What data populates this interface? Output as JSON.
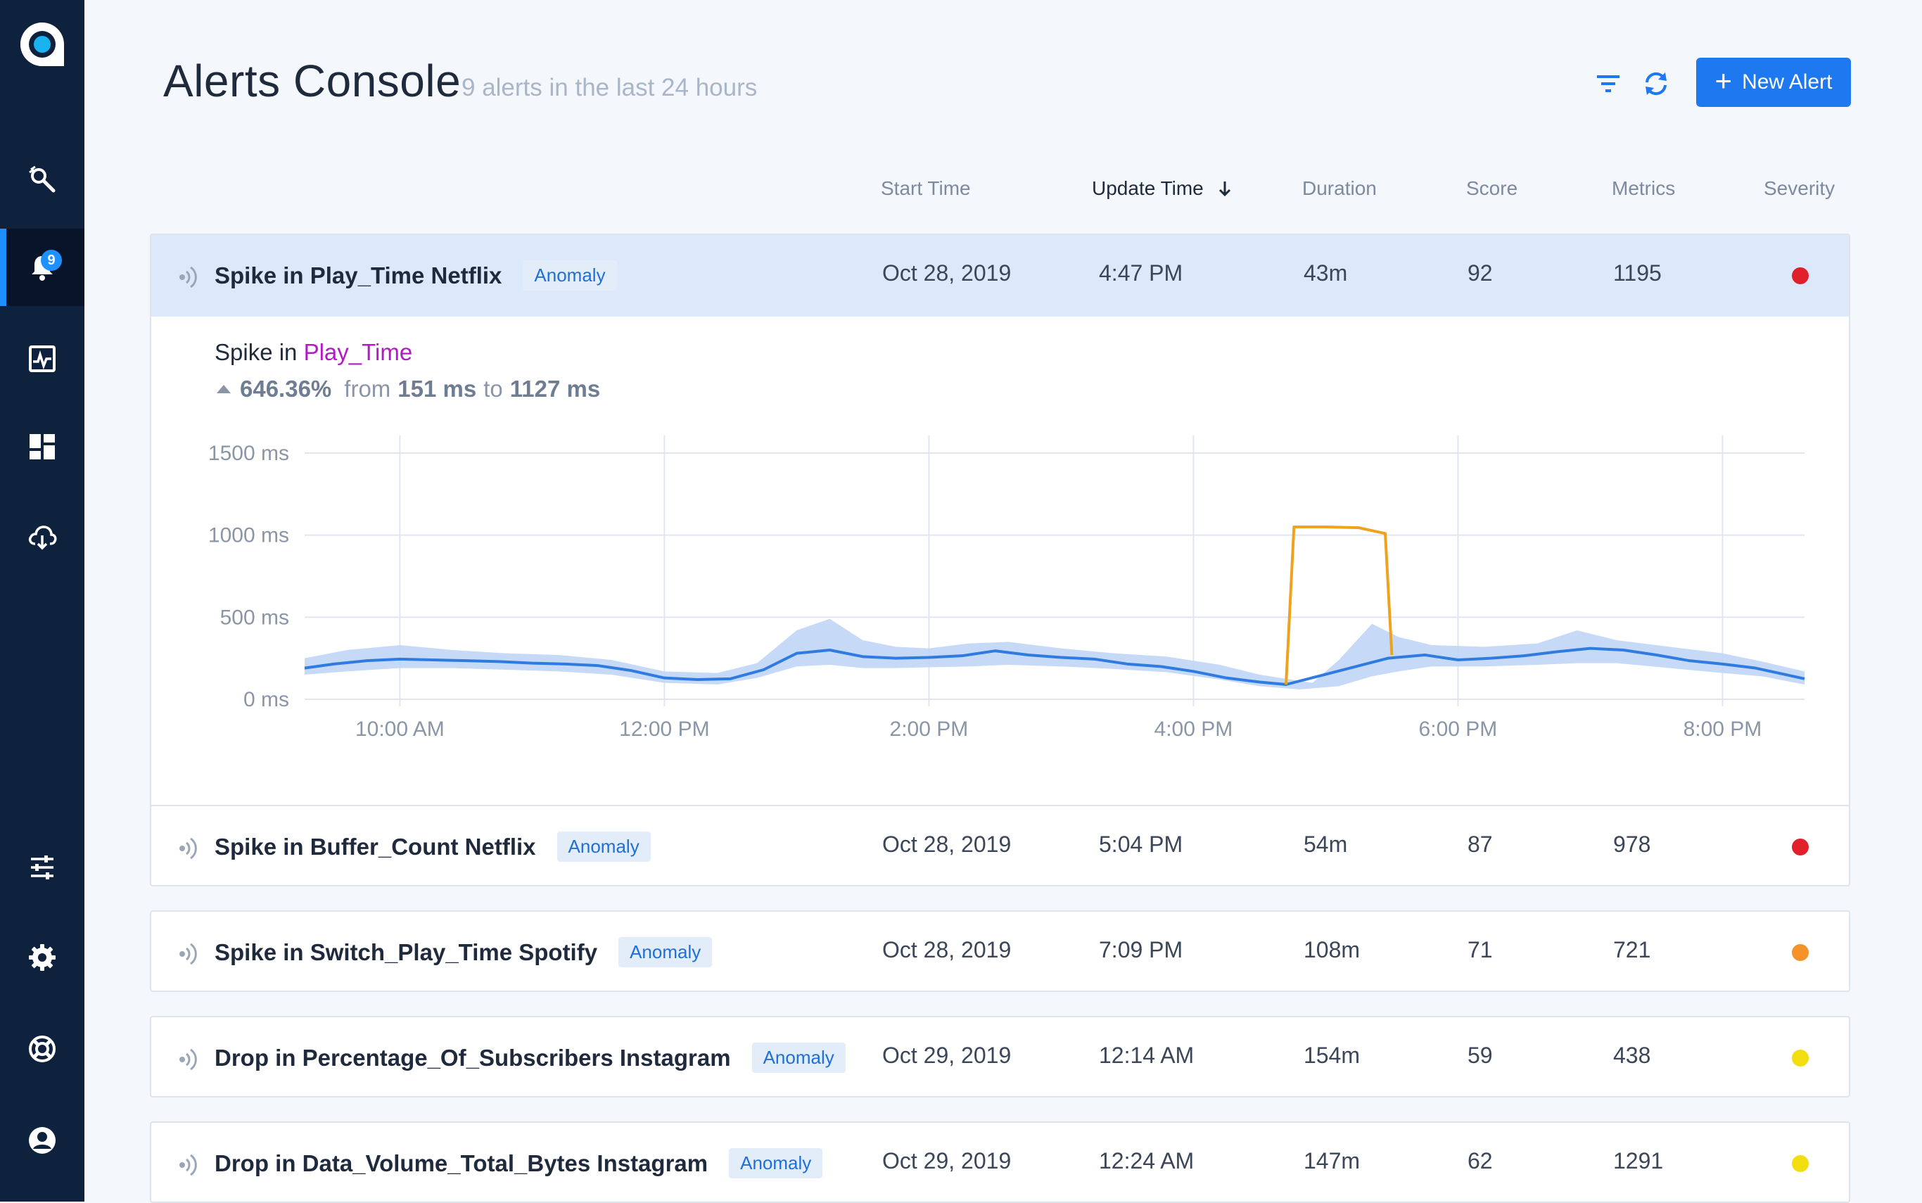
{
  "app": {
    "title": "Alerts Console",
    "subtitle": "9 alerts in the last 24 hours",
    "new_alert_label": "New Alert",
    "notifications_count": "9"
  },
  "columns": {
    "start": "Start Time",
    "update": "Update Time",
    "duration": "Duration",
    "score": "Score",
    "metrics": "Metrics",
    "severity": "Severity"
  },
  "rows": [
    {
      "title": "Spike in Play_Time Netflix",
      "tag": "Anomaly",
      "start": "Oct 28, 2019",
      "update": "4:47 PM",
      "duration": "43m",
      "score": "92",
      "metrics": "1195",
      "severity_color": "#e0202a"
    },
    {
      "title": "Spike in Buffer_Count Netflix",
      "tag": "Anomaly",
      "start": "Oct 28, 2019",
      "update": "5:04 PM",
      "duration": "54m",
      "score": "87",
      "metrics": "978",
      "severity_color": "#e0202a"
    },
    {
      "title": "Spike in Switch_Play_Time Spotify",
      "tag": "Anomaly",
      "start": "Oct 28, 2019",
      "update": "7:09 PM",
      "duration": "108m",
      "score": "71",
      "metrics": "721",
      "severity_color": "#f5922a"
    },
    {
      "title": "Drop in Percentage_Of_Subscribers Instagram",
      "tag": "Anomaly",
      "start": "Oct 29, 2019",
      "update": "12:14 AM",
      "duration": "154m",
      "score": "59",
      "metrics": "438",
      "severity_color": "#f2de0f"
    },
    {
      "title": "Drop in Data_Volume_Total_Bytes Instagram",
      "tag": "Anomaly",
      "start": "Oct 29, 2019",
      "update": "12:24 AM",
      "duration": "147m",
      "score": "62",
      "metrics": "1291",
      "severity_color": "#f2de0f"
    }
  ],
  "detail": {
    "prefix": "Spike in",
    "metric": "Play_Time",
    "change": "646.36%",
    "from_word": "from",
    "from_value": "151 ms",
    "to_word": "to",
    "to_value": "1127 ms"
  },
  "chart_data": {
    "type": "line",
    "y_ticks": [
      "0 ms",
      "500 ms",
      "1000 ms",
      "1500 ms"
    ],
    "ylim": [
      0,
      1500
    ],
    "x_ticks": [
      "10:00 AM",
      "12:00 PM",
      "2:00 PM",
      "4:00 PM",
      "6:00 PM",
      "8:00 PM"
    ],
    "x_tick_hours": [
      10,
      12,
      14,
      16,
      18,
      20
    ],
    "xlim_hours": [
      9.28,
      20.62
    ],
    "grid": true,
    "series": [
      {
        "color": "#2f7be0",
        "points": [
          [
            9.28,
            190
          ],
          [
            9.5,
            215
          ],
          [
            9.75,
            235
          ],
          [
            10,
            245
          ],
          [
            10.25,
            240
          ],
          [
            10.5,
            235
          ],
          [
            10.75,
            230
          ],
          [
            11,
            220
          ],
          [
            11.25,
            215
          ],
          [
            11.5,
            205
          ],
          [
            11.75,
            175
          ],
          [
            12,
            130
          ],
          [
            12.25,
            120
          ],
          [
            12.5,
            125
          ],
          [
            12.75,
            180
          ],
          [
            13,
            280
          ],
          [
            13.25,
            300
          ],
          [
            13.5,
            260
          ],
          [
            13.75,
            250
          ],
          [
            14,
            255
          ],
          [
            14.25,
            265
          ],
          [
            14.5,
            295
          ],
          [
            14.75,
            270
          ],
          [
            15,
            255
          ],
          [
            15.25,
            245
          ],
          [
            15.5,
            215
          ],
          [
            15.75,
            200
          ],
          [
            16,
            170
          ],
          [
            16.25,
            130
          ],
          [
            16.5,
            105
          ],
          [
            16.7,
            90
          ],
          [
            17.47,
            250
          ],
          [
            17.75,
            270
          ],
          [
            18,
            240
          ],
          [
            18.25,
            250
          ],
          [
            18.5,
            265
          ],
          [
            18.75,
            290
          ],
          [
            19,
            310
          ],
          [
            19.25,
            300
          ],
          [
            19.5,
            270
          ],
          [
            19.75,
            235
          ],
          [
            20,
            215
          ],
          [
            20.25,
            190
          ],
          [
            20.62,
            125
          ]
        ]
      },
      {
        "color": "#eea21e",
        "points": [
          [
            16.7,
            90
          ],
          [
            16.76,
            1050
          ],
          [
            17.0,
            1050
          ],
          [
            17.25,
            1045
          ],
          [
            17.45,
            1010
          ],
          [
            17.5,
            270
          ]
        ]
      }
    ],
    "band": {
      "color": "#bcd4f7",
      "upper": [
        [
          9.28,
          250
        ],
        [
          9.6,
          300
        ],
        [
          10,
          330
        ],
        [
          10.4,
          300
        ],
        [
          10.8,
          280
        ],
        [
          11.2,
          270
        ],
        [
          11.6,
          240
        ],
        [
          12,
          170
        ],
        [
          12.4,
          160
        ],
        [
          12.7,
          220
        ],
        [
          13,
          420
        ],
        [
          13.25,
          490
        ],
        [
          13.5,
          360
        ],
        [
          13.75,
          320
        ],
        [
          14,
          310
        ],
        [
          14.3,
          340
        ],
        [
          14.6,
          350
        ],
        [
          15,
          310
        ],
        [
          15.4,
          280
        ],
        [
          15.8,
          260
        ],
        [
          16.2,
          210
        ],
        [
          16.5,
          150
        ],
        [
          16.9,
          100
        ],
        [
          17.1,
          240
        ],
        [
          17.35,
          460
        ],
        [
          17.55,
          380
        ],
        [
          17.8,
          330
        ],
        [
          18.2,
          320
        ],
        [
          18.6,
          340
        ],
        [
          18.9,
          420
        ],
        [
          19.2,
          360
        ],
        [
          19.6,
          320
        ],
        [
          20,
          280
        ],
        [
          20.3,
          230
        ],
        [
          20.62,
          170
        ]
      ],
      "lower": [
        [
          9.28,
          150
        ],
        [
          9.6,
          170
        ],
        [
          10,
          190
        ],
        [
          10.4,
          190
        ],
        [
          10.8,
          180
        ],
        [
          11.2,
          170
        ],
        [
          11.6,
          150
        ],
        [
          12,
          100
        ],
        [
          12.4,
          90
        ],
        [
          12.7,
          130
        ],
        [
          13,
          200
        ],
        [
          13.25,
          210
        ],
        [
          13.5,
          190
        ],
        [
          13.75,
          190
        ],
        [
          14,
          195
        ],
        [
          14.3,
          200
        ],
        [
          14.6,
          210
        ],
        [
          15,
          200
        ],
        [
          15.4,
          185
        ],
        [
          15.8,
          165
        ],
        [
          16.2,
          120
        ],
        [
          16.5,
          80
        ],
        [
          16.8,
          60
        ],
        [
          17.1,
          80
        ],
        [
          17.35,
          140
        ],
        [
          17.55,
          170
        ],
        [
          17.8,
          200
        ],
        [
          18.2,
          200
        ],
        [
          18.6,
          210
        ],
        [
          18.9,
          220
        ],
        [
          19.2,
          220
        ],
        [
          19.6,
          190
        ],
        [
          20,
          160
        ],
        [
          20.3,
          140
        ],
        [
          20.62,
          90
        ]
      ]
    }
  }
}
